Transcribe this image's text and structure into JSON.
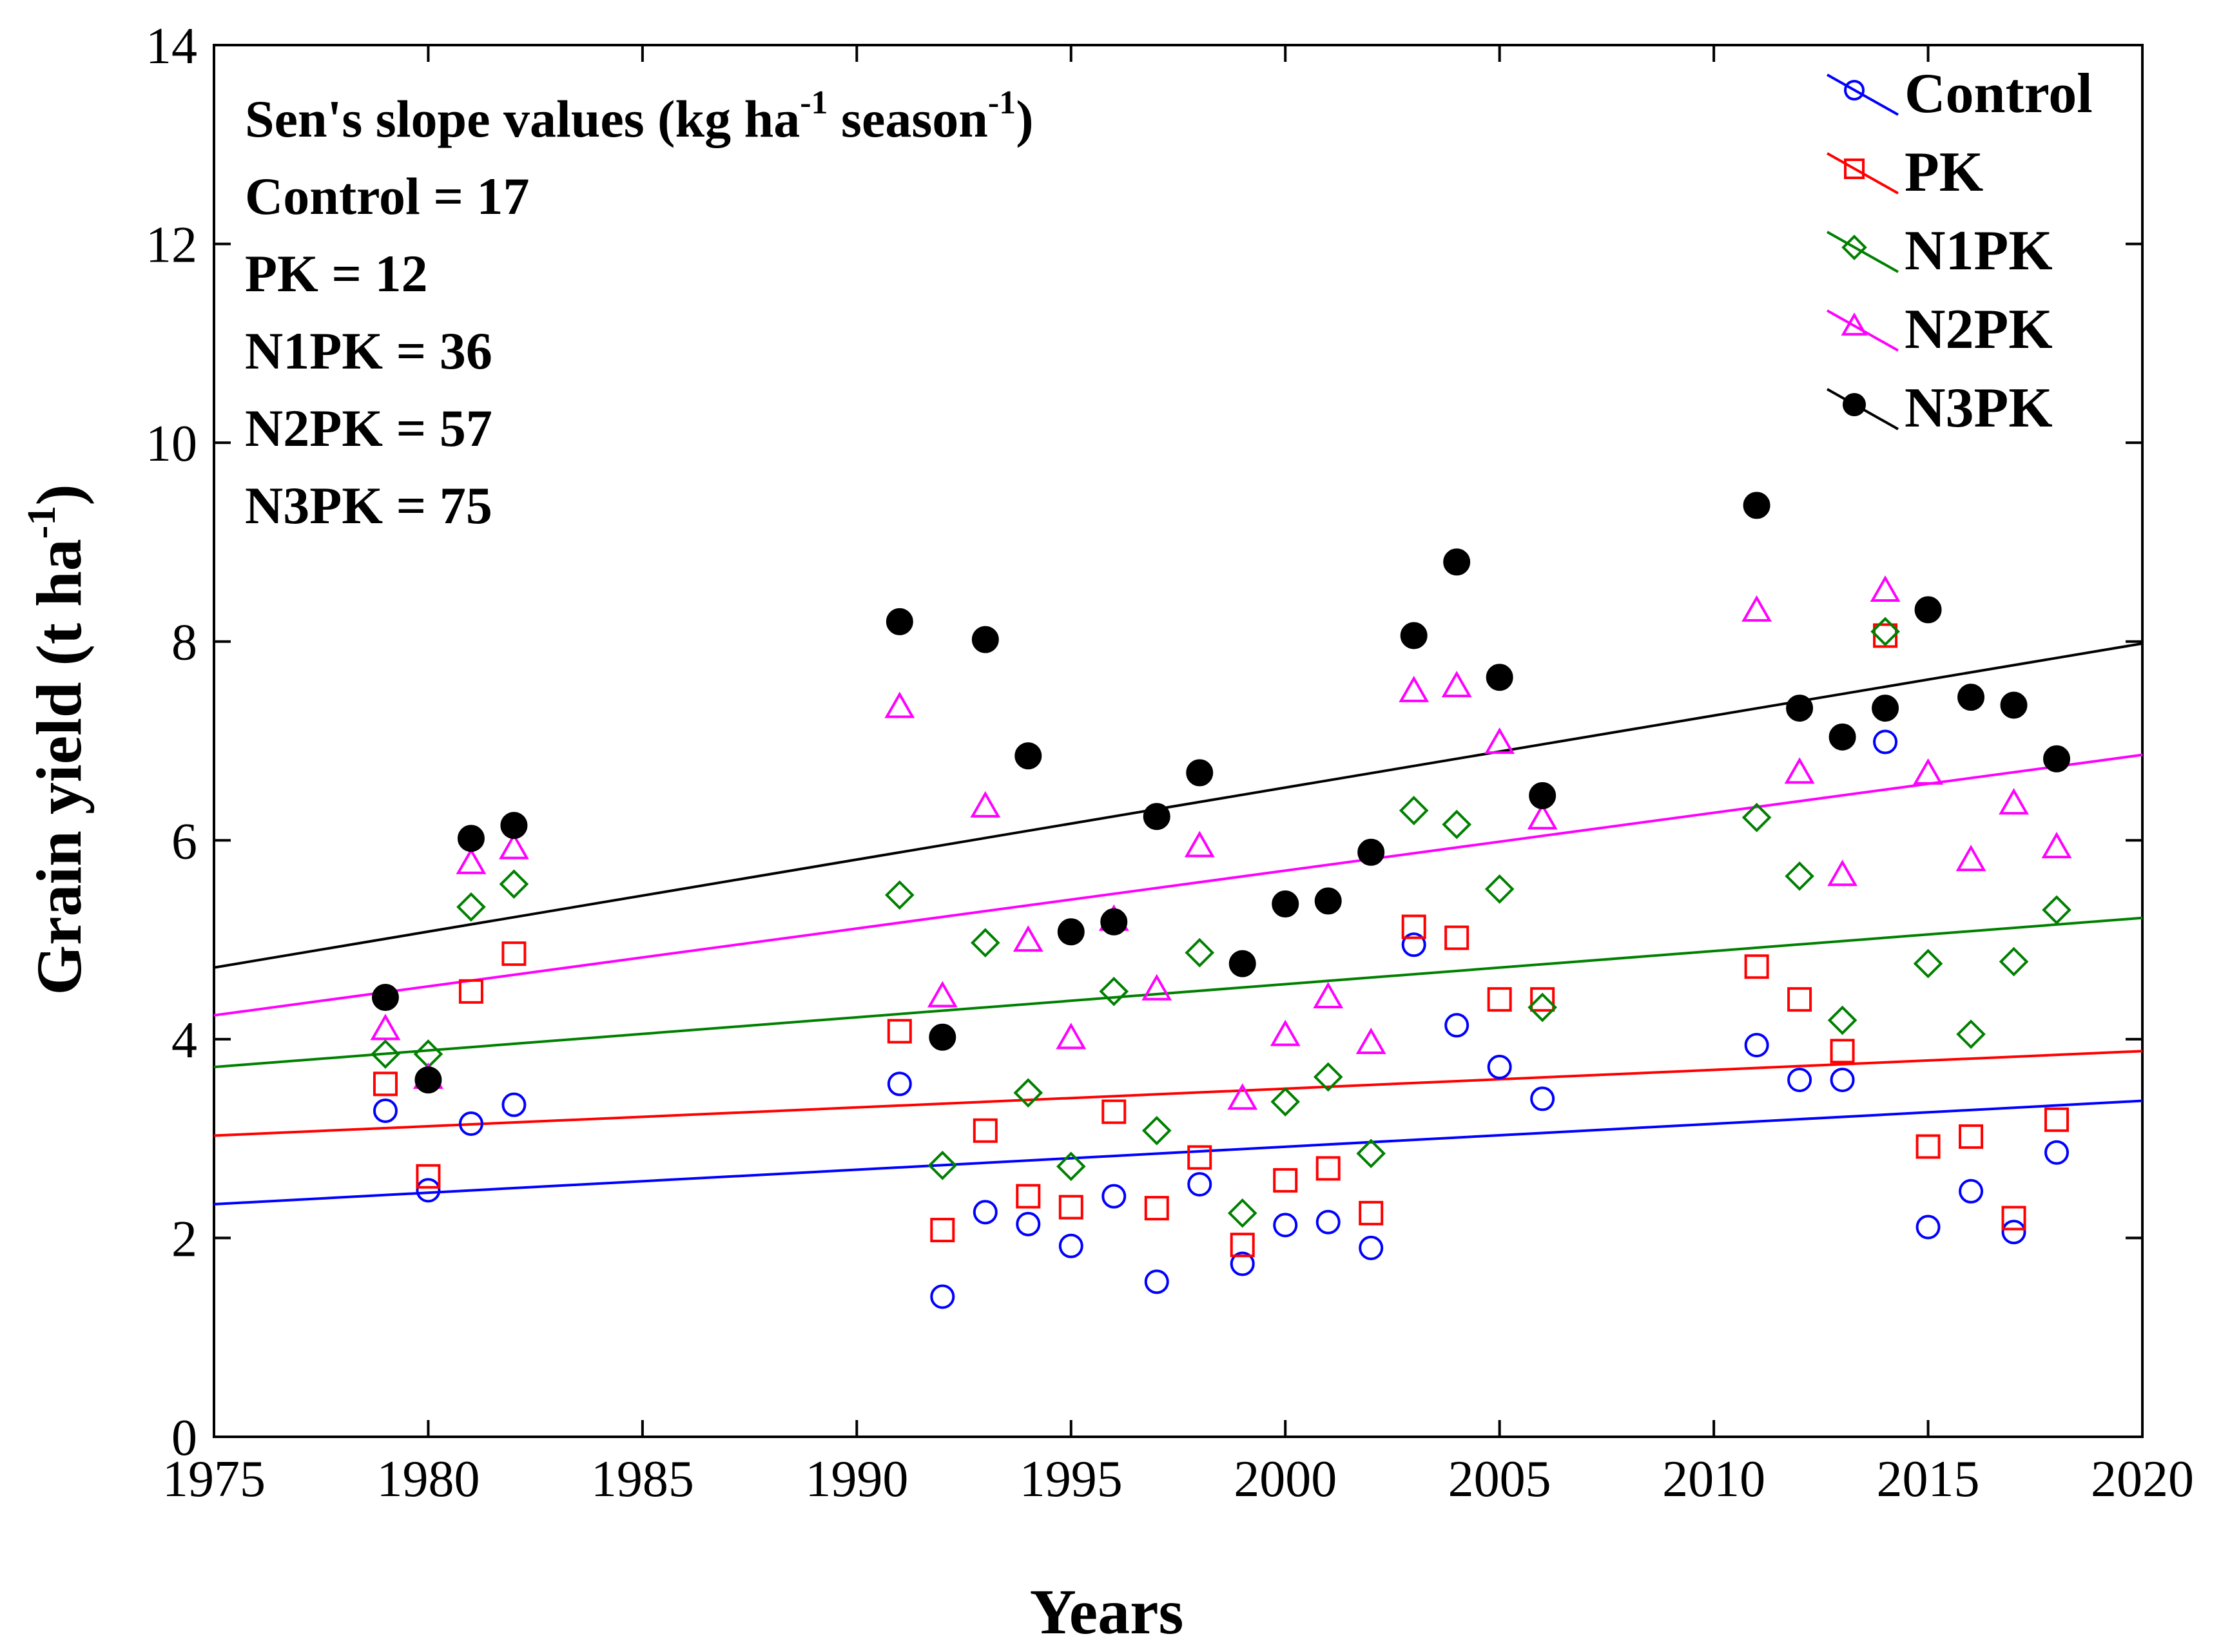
{
  "chart_data": {
    "type": "scatter",
    "xlabel": "Years",
    "ylabel": "Grain yield (t ha",
    "ylabel_sup": "-1",
    "ylabel_close": ")",
    "xlim": [
      1975,
      2020
    ],
    "ylim": [
      0,
      14
    ],
    "x_ticks": [
      1975,
      1980,
      1985,
      1990,
      1995,
      2000,
      2005,
      2010,
      2015,
      2020
    ],
    "y_ticks": [
      0,
      2,
      4,
      6,
      8,
      10,
      12,
      14
    ],
    "grid": false,
    "legend_position": "top-right",
    "annotation": {
      "heading": "Sen's slope values (kg ha",
      "heading_sup1": "-1",
      "heading_mid": " season",
      "heading_sup2": "-1",
      "heading_end": ")",
      "lines": [
        "Control = 17",
        "PK = 12",
        "N1PK = 36",
        "N2PK = 57",
        "N3PK = 75"
      ]
    },
    "series": [
      {
        "name": "Control",
        "color": "#0000ff",
        "marker": "circle",
        "trend": [
          [
            1975,
            2.34
          ],
          [
            2020,
            3.38
          ]
        ],
        "points": [
          [
            1979,
            3.28
          ],
          [
            1980,
            2.48
          ],
          [
            1981,
            3.15
          ],
          [
            1982,
            3.34
          ],
          [
            1991,
            3.55
          ],
          [
            1992,
            1.41
          ],
          [
            1993,
            2.26
          ],
          [
            1994,
            2.14
          ],
          [
            1995,
            1.92
          ],
          [
            1996,
            2.42
          ],
          [
            1997,
            1.56
          ],
          [
            1998,
            2.54
          ],
          [
            1999,
            1.74
          ],
          [
            2000,
            2.13
          ],
          [
            2001,
            2.16
          ],
          [
            2002,
            1.9
          ],
          [
            2003,
            4.95
          ],
          [
            2004,
            4.14
          ],
          [
            2005,
            3.72
          ],
          [
            2006,
            3.4
          ],
          [
            2011,
            3.94
          ],
          [
            2012,
            3.59
          ],
          [
            2013,
            3.59
          ],
          [
            2014,
            6.99
          ],
          [
            2015,
            2.11
          ],
          [
            2016,
            2.47
          ],
          [
            2017,
            2.06
          ],
          [
            2018,
            2.86
          ]
        ]
      },
      {
        "name": "PK",
        "color": "#ff0000",
        "marker": "square",
        "trend": [
          [
            1975,
            3.03
          ],
          [
            2020,
            3.88
          ]
        ],
        "points": [
          [
            1979,
            3.55
          ],
          [
            1980,
            2.62
          ],
          [
            1981,
            4.48
          ],
          [
            1982,
            4.86
          ],
          [
            1991,
            4.08
          ],
          [
            1992,
            2.08
          ],
          [
            1993,
            3.08
          ],
          [
            1994,
            2.42
          ],
          [
            1995,
            2.31
          ],
          [
            1996,
            3.27
          ],
          [
            1997,
            2.3
          ],
          [
            1998,
            2.81
          ],
          [
            1999,
            1.93
          ],
          [
            2000,
            2.58
          ],
          [
            2001,
            2.7
          ],
          [
            2002,
            2.25
          ],
          [
            2003,
            5.13
          ],
          [
            2004,
            5.02
          ],
          [
            2005,
            4.4
          ],
          [
            2006,
            4.4
          ],
          [
            2011,
            4.73
          ],
          [
            2012,
            4.4
          ],
          [
            2013,
            3.88
          ],
          [
            2014,
            8.06
          ],
          [
            2015,
            2.92
          ],
          [
            2016,
            3.02
          ],
          [
            2017,
            2.2
          ],
          [
            2018,
            3.19
          ]
        ]
      },
      {
        "name": "N1PK",
        "color": "#008000",
        "marker": "diamond",
        "trend": [
          [
            1975,
            3.72
          ],
          [
            2020,
            5.22
          ]
        ],
        "points": [
          [
            1979,
            3.85
          ],
          [
            1980,
            3.85
          ],
          [
            1981,
            5.33
          ],
          [
            1982,
            5.56
          ],
          [
            1991,
            5.45
          ],
          [
            1992,
            2.73
          ],
          [
            1993,
            4.97
          ],
          [
            1994,
            3.46
          ],
          [
            1995,
            2.72
          ],
          [
            1996,
            4.48
          ],
          [
            1997,
            3.08
          ],
          [
            1998,
            4.87
          ],
          [
            1999,
            2.25
          ],
          [
            2000,
            3.37
          ],
          [
            2001,
            3.62
          ],
          [
            2002,
            2.85
          ],
          [
            2003,
            6.3
          ],
          [
            2004,
            6.16
          ],
          [
            2005,
            5.51
          ],
          [
            2006,
            4.32
          ],
          [
            2011,
            6.23
          ],
          [
            2012,
            5.64
          ],
          [
            2013,
            4.19
          ],
          [
            2014,
            8.1
          ],
          [
            2015,
            4.76
          ],
          [
            2016,
            4.05
          ],
          [
            2017,
            4.78
          ],
          [
            2018,
            5.3
          ]
        ]
      },
      {
        "name": "N2PK",
        "color": "#ff00ff",
        "marker": "triangle",
        "trend": [
          [
            1975,
            4.24
          ],
          [
            2020,
            6.86
          ]
        ],
        "points": [
          [
            1979,
            4.1
          ],
          [
            1980,
            3.61
          ],
          [
            1981,
            5.77
          ],
          [
            1982,
            5.92
          ],
          [
            1991,
            7.34
          ],
          [
            1992,
            4.43
          ],
          [
            1993,
            6.34
          ],
          [
            1994,
            4.99
          ],
          [
            1995,
            4.01
          ],
          [
            1996,
            5.2
          ],
          [
            1997,
            4.5
          ],
          [
            1998,
            5.94
          ],
          [
            1999,
            3.4
          ],
          [
            2000,
            4.04
          ],
          [
            2001,
            4.42
          ],
          [
            2002,
            3.96
          ],
          [
            2003,
            7.5
          ],
          [
            2004,
            7.55
          ],
          [
            2005,
            6.98
          ],
          [
            2006,
            6.22
          ],
          [
            2011,
            8.31
          ],
          [
            2012,
            6.68
          ],
          [
            2013,
            5.65
          ],
          [
            2014,
            8.51
          ],
          [
            2015,
            6.67
          ],
          [
            2016,
            5.8
          ],
          [
            2017,
            6.37
          ],
          [
            2018,
            5.93
          ]
        ]
      },
      {
        "name": "N3PK",
        "color": "#000000",
        "marker": "filled-circle",
        "trend": [
          [
            1975,
            4.72
          ],
          [
            2020,
            7.98
          ]
        ],
        "points": [
          [
            1979,
            4.42
          ],
          [
            1980,
            3.59
          ],
          [
            1981,
            6.02
          ],
          [
            1982,
            6.15
          ],
          [
            1991,
            8.2
          ],
          [
            1992,
            4.02
          ],
          [
            1993,
            8.02
          ],
          [
            1994,
            6.85
          ],
          [
            1995,
            5.08
          ],
          [
            1996,
            5.18
          ],
          [
            1997,
            6.24
          ],
          [
            1998,
            6.68
          ],
          [
            1999,
            4.76
          ],
          [
            2000,
            5.36
          ],
          [
            2001,
            5.39
          ],
          [
            2002,
            5.88
          ],
          [
            2003,
            8.06
          ],
          [
            2004,
            8.8
          ],
          [
            2005,
            7.64
          ],
          [
            2006,
            6.45
          ],
          [
            2011,
            9.37
          ],
          [
            2012,
            7.33
          ],
          [
            2013,
            7.04
          ],
          [
            2014,
            7.33
          ],
          [
            2015,
            8.32
          ],
          [
            2016,
            7.44
          ],
          [
            2017,
            7.36
          ],
          [
            2018,
            6.82
          ]
        ]
      }
    ]
  }
}
